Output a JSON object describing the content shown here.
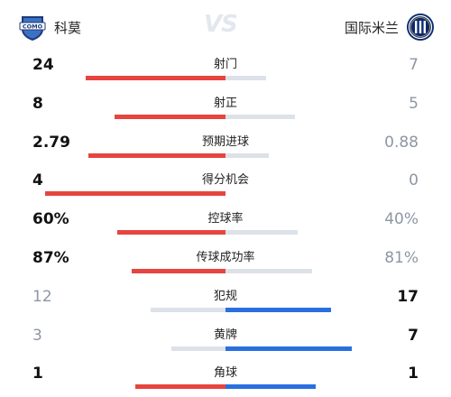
{
  "header": {
    "home_team": "科莫",
    "away_team": "国际米兰",
    "vs": "VS",
    "home_logo_text": "COMO",
    "colors": {
      "red": "#e6453f",
      "blue": "#2a6fe0",
      "gray": "#dde1e8"
    }
  },
  "stats": [
    {
      "label": "射门",
      "home": "24",
      "away": "7",
      "home_value": 24,
      "away_value": 7
    },
    {
      "label": "射正",
      "home": "8",
      "away": "5",
      "home_value": 8,
      "away_value": 5
    },
    {
      "label": "预期进球",
      "home": "2.79",
      "away": "0.88",
      "home_value": 2.79,
      "away_value": 0.88
    },
    {
      "label": "得分机会",
      "home": "4",
      "away": "0",
      "home_value": 4,
      "away_value": 0
    },
    {
      "label": "控球率",
      "home": "60%",
      "away": "40%",
      "home_value": 60,
      "away_value": 40
    },
    {
      "label": "传球成功率",
      "home": "87%",
      "away": "81%",
      "home_value": 87,
      "away_value": 81
    },
    {
      "label": "犯规",
      "home": "12",
      "away": "17",
      "home_value": 12,
      "away_value": 17
    },
    {
      "label": "黄牌",
      "home": "3",
      "away": "7",
      "home_value": 3,
      "away_value": 7
    },
    {
      "label": "角球",
      "home": "1",
      "away": "1",
      "home_value": 1,
      "away_value": 1
    }
  ]
}
